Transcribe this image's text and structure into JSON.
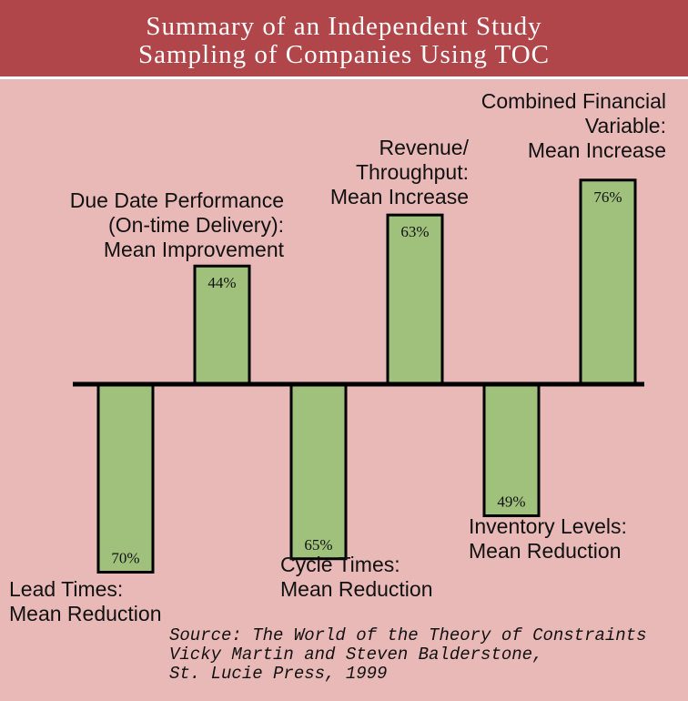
{
  "header": {
    "title_line1": "Summary of an Independent Study",
    "title_line2": "Sampling of Companies Using TOC"
  },
  "colors": {
    "background": "#e9b9b8",
    "header": "#b0464a",
    "bar_fill": "#9fc17c",
    "bar_stroke": "#000000"
  },
  "chart_data": {
    "type": "bar",
    "title": "Summary of an Independent Study Sampling of Companies Using TOC",
    "categories": [
      "Lead Times: Mean Reduction",
      "Due Date Performance (On-time Delivery): Mean Improvement",
      "Cycle Times: Mean Reduction",
      "Revenue/ Throughput: Mean Increase",
      "Inventory Levels: Mean Reduction",
      "Combined Financial Variable: Mean Increase"
    ],
    "values": [
      -70,
      44,
      -65,
      63,
      -49,
      76
    ],
    "value_labels": [
      "70%",
      "44%",
      "65%",
      "63%",
      "49%",
      "76%"
    ],
    "unit": "%",
    "ylim": [
      -80,
      80
    ],
    "grid": false,
    "legend": "none"
  },
  "labels": {
    "lead_times": [
      "Lead Times:",
      "Mean Reduction"
    ],
    "due_date": [
      "Due Date Performance",
      "(On-time Delivery):",
      "Mean Improvement"
    ],
    "cycle_times": [
      "Cycle Times:",
      "Mean Reduction"
    ],
    "revenue": [
      "Revenue/",
      "Throughput:",
      "Mean Increase"
    ],
    "inventory": [
      "Inventory Levels:",
      "Mean Reduction"
    ],
    "combined": [
      "Combined Financial",
      "Variable:",
      "Mean Increase"
    ]
  },
  "source": {
    "line1": "Source: The World of the Theory of Constraints",
    "line2": "Vicky Martin and Steven Balderstone,",
    "line3": "St. Lucie Press, 1999"
  }
}
